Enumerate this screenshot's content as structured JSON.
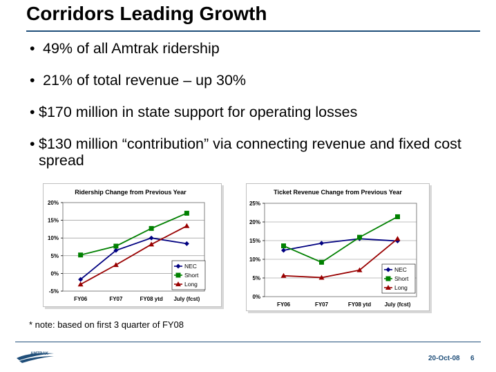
{
  "slide": {
    "title": "Corridors Leading Growth",
    "bullets": [
      "49% of all Amtrak ridership",
      "21% of total revenue – up 30%",
      "$170 million in state support for operating losses",
      "$130 million “contribution” via connecting revenue and fixed cost spread"
    ],
    "note": "* note: based on first 3 quarter of FY08",
    "footer_date": "20-Oct-08",
    "page_number": "6",
    "logo_text": "AMTRAK"
  },
  "colors": {
    "title_rule": "#1f4e79",
    "nec": "#000080",
    "short": "#008000",
    "long": "#990000"
  },
  "chart_data": [
    {
      "type": "line",
      "title": "Ridership Change from Previous Year",
      "categories": [
        "FY06",
        "FY07",
        "FY08 ytd",
        "July (fcst)"
      ],
      "series": [
        {
          "name": "NEC",
          "values": [
            -1.7,
            6.5,
            10.0,
            8.4
          ]
        },
        {
          "name": "Short",
          "values": [
            5.2,
            7.7,
            12.7,
            17.0
          ]
        },
        {
          "name": "Long",
          "values": [
            -3.1,
            2.4,
            8.2,
            13.4
          ]
        }
      ],
      "ylim": [
        -5,
        20
      ],
      "yticks": [
        "-5%",
        "0%",
        "5%",
        "10%",
        "15%",
        "20%"
      ],
      "ytick_values": [
        -5,
        0,
        5,
        10,
        15,
        20
      ],
      "grid": true,
      "legend": "bottom-right"
    },
    {
      "type": "line",
      "title": "Ticket Revenue Change from Previous Year",
      "categories": [
        "FY06",
        "FY07",
        "FY08 ytd",
        "July (fcst)"
      ],
      "series": [
        {
          "name": "NEC",
          "values": [
            12.4,
            14.3,
            15.5,
            14.9
          ]
        },
        {
          "name": "Short",
          "values": [
            13.6,
            9.2,
            15.9,
            21.4
          ]
        },
        {
          "name": "Long",
          "values": [
            5.6,
            5.1,
            7.1,
            15.5
          ]
        }
      ],
      "ylim": [
        0,
        25
      ],
      "yticks": [
        "0%",
        "5%",
        "10%",
        "15%",
        "20%",
        "25%"
      ],
      "ytick_values": [
        0,
        5,
        10,
        15,
        20,
        25
      ],
      "grid": true,
      "legend": "bottom-right"
    }
  ]
}
